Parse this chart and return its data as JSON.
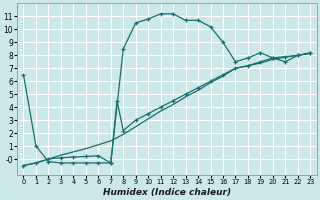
{
  "xlabel": "Humidex (Indice chaleur)",
  "bg_color": "#cce8e8",
  "grid_color": "#ffffff",
  "line_color": "#1a6e6e",
  "xlim": [
    -0.5,
    23.5
  ],
  "ylim": [
    -1.2,
    12.0
  ],
  "xticks": [
    0,
    1,
    2,
    3,
    4,
    5,
    6,
    7,
    8,
    9,
    10,
    11,
    12,
    13,
    14,
    15,
    16,
    17,
    18,
    19,
    20,
    21,
    22,
    23
  ],
  "yticks": [
    0,
    1,
    2,
    3,
    4,
    5,
    6,
    7,
    8,
    9,
    10,
    11
  ],
  "line1_x": [
    0,
    1,
    2,
    3,
    4,
    5,
    6,
    7,
    8,
    9,
    10,
    11,
    12,
    13,
    14,
    15,
    16,
    17,
    18,
    19,
    20,
    21,
    22,
    23
  ],
  "line1_y": [
    6.5,
    1.0,
    -0.2,
    -0.3,
    -0.3,
    -0.3,
    -0.3,
    -0.3,
    8.5,
    10.5,
    10.8,
    11.2,
    11.2,
    10.7,
    10.7,
    10.2,
    9.0,
    7.5,
    7.8,
    8.2,
    7.8,
    7.5,
    8.0,
    8.2
  ],
  "line2_x": [
    0,
    1,
    2,
    3,
    4,
    5,
    6,
    7,
    8,
    9,
    10,
    11,
    12,
    13,
    14,
    15,
    16,
    17,
    18,
    19,
    20,
    21,
    22,
    23
  ],
  "line2_y": [
    -0.5,
    -0.3,
    0.0,
    0.3,
    0.55,
    0.8,
    1.1,
    1.4,
    1.9,
    2.5,
    3.1,
    3.7,
    4.2,
    4.8,
    5.3,
    5.9,
    6.4,
    7.0,
    7.2,
    7.4,
    7.7,
    7.85,
    8.0,
    8.15
  ],
  "line3_x": [
    0,
    1,
    2,
    3,
    4,
    5,
    6,
    7,
    7.5,
    8,
    9,
    10,
    11,
    12,
    13,
    14,
    15,
    16,
    17,
    18,
    19,
    20,
    21,
    22,
    23
  ],
  "line3_y": [
    -0.5,
    -0.3,
    0.0,
    0.1,
    0.15,
    0.2,
    0.25,
    -0.3,
    4.5,
    2.2,
    3.0,
    3.5,
    4.0,
    4.5,
    5.0,
    5.5,
    6.0,
    6.5,
    7.0,
    7.2,
    7.5,
    7.8,
    7.9,
    8.0,
    8.15
  ]
}
